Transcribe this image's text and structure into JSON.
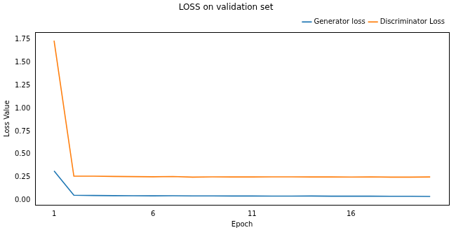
{
  "chart_data": {
    "type": "line",
    "title": "LOSS on validation set",
    "x_label": "Epoch",
    "y_label": "Loss Value",
    "x": [
      1,
      2,
      3,
      4,
      5,
      6,
      7,
      8,
      9,
      10,
      11,
      12,
      13,
      14,
      15,
      16,
      17,
      18,
      19,
      20
    ],
    "series": [
      {
        "name": "Generator loss",
        "color": "#1f77b4",
        "values": [
          0.32,
          0.055,
          0.052,
          0.05,
          0.049,
          0.048,
          0.049,
          0.047,
          0.047,
          0.046,
          0.046,
          0.045,
          0.045,
          0.046,
          0.044,
          0.044,
          0.044,
          0.043,
          0.043,
          0.042
        ]
      },
      {
        "name": "Discriminator Loss",
        "color": "#ff7f0e",
        "values": [
          1.74,
          0.262,
          0.262,
          0.26,
          0.258,
          0.256,
          0.259,
          0.252,
          0.255,
          0.254,
          0.254,
          0.255,
          0.255,
          0.254,
          0.254,
          0.253,
          0.255,
          0.252,
          0.252,
          0.254
        ]
      }
    ],
    "xlim": [
      0.05,
      20.95
    ],
    "xticks": [
      1,
      6,
      11,
      16
    ],
    "ylim": [
      -0.05,
      1.83
    ],
    "yticks": [
      {
        "value": 0,
        "label": "0.00"
      },
      {
        "value": 0.25,
        "label": "0.25"
      },
      {
        "value": 0.5,
        "label": "0.50"
      },
      {
        "value": 0.75,
        "label": "0.75"
      },
      {
        "value": 1,
        "label": "1.00"
      },
      {
        "value": 1.25,
        "label": "1.25"
      },
      {
        "value": 1.5,
        "label": "1.50"
      },
      {
        "value": 1.75,
        "label": "1.75"
      }
    ],
    "grid": false,
    "legend": "upper right"
  }
}
